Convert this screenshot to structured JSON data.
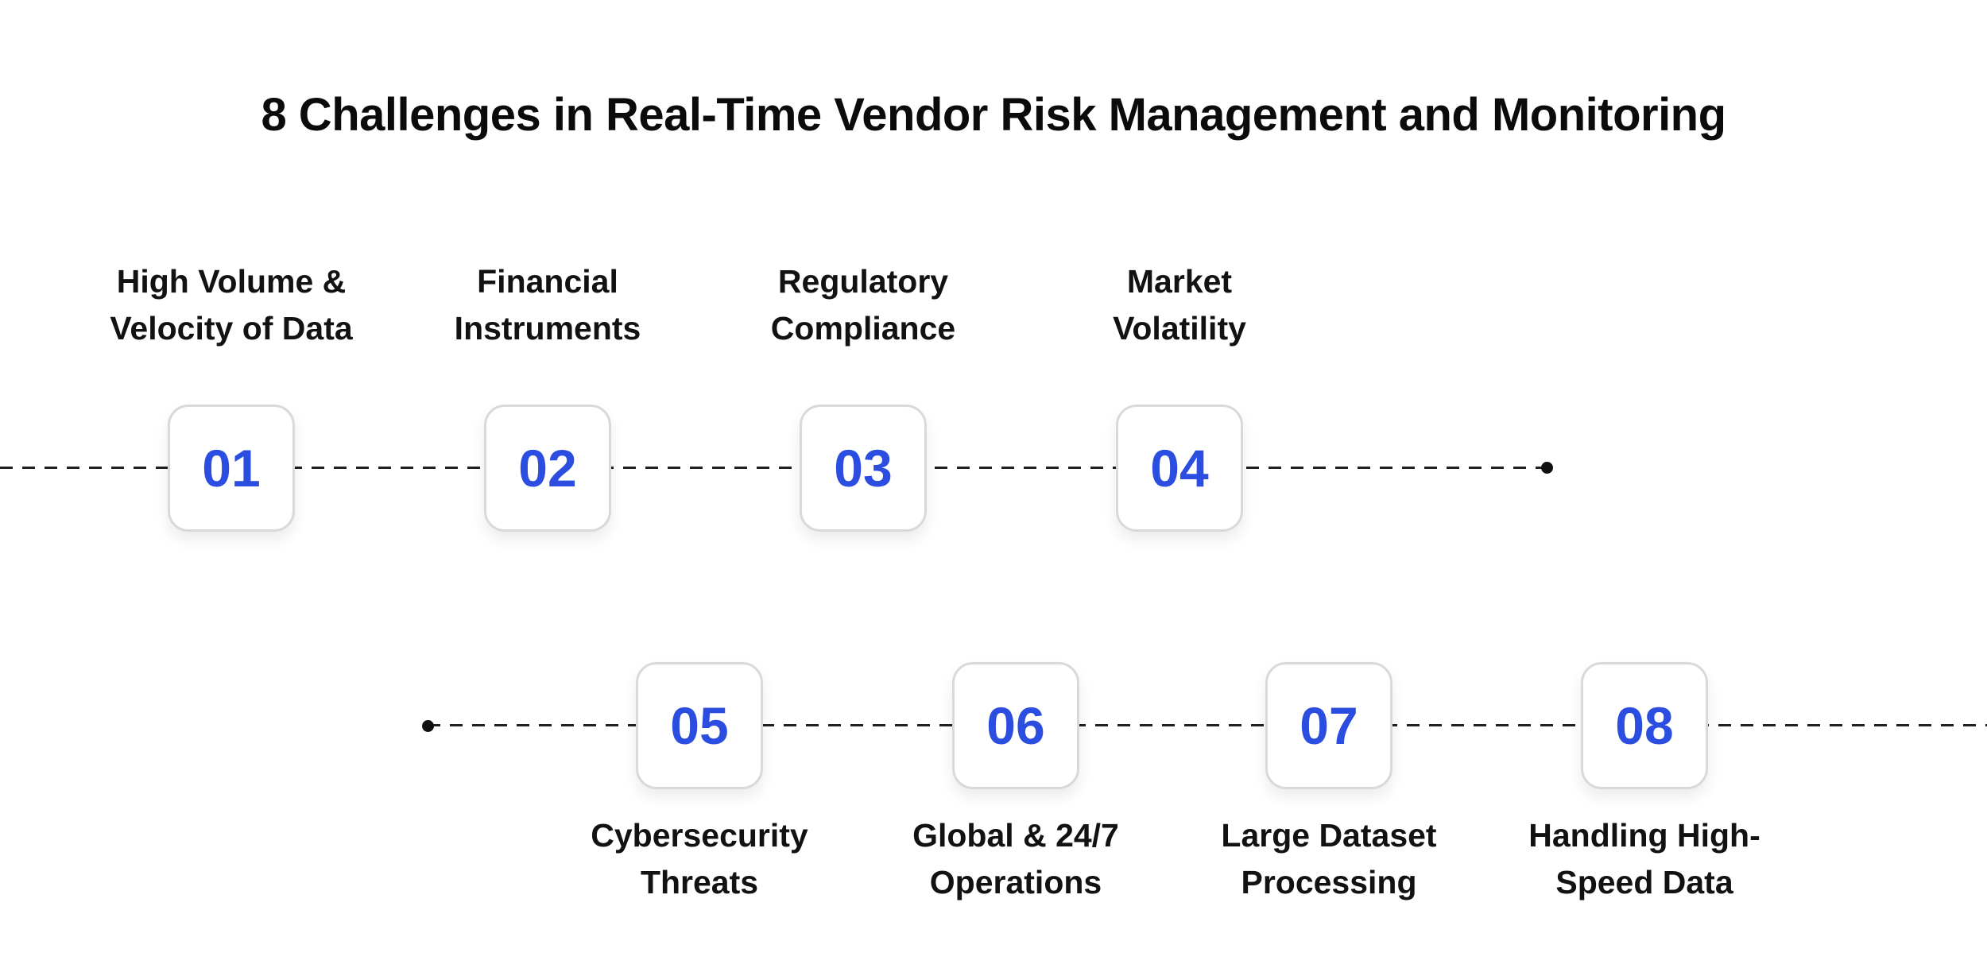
{
  "title": "8 Challenges in Real-Time Vendor Risk Management and Monitoring",
  "colors": {
    "accent": "#2B4EE0",
    "line": "#1f1f1f",
    "box_border": "#d9d9d9"
  },
  "items": [
    {
      "number": "01",
      "label_line1": "High Volume &",
      "label_line2": "Velocity of Data"
    },
    {
      "number": "02",
      "label_line1": "Financial",
      "label_line2": "Instruments"
    },
    {
      "number": "03",
      "label_line1": "Regulatory",
      "label_line2": "Compliance"
    },
    {
      "number": "04",
      "label_line1": "Market",
      "label_line2": "Volatility"
    },
    {
      "number": "05",
      "label_line1": "Cybersecurity",
      "label_line2": "Threats"
    },
    {
      "number": "06",
      "label_line1": "Global & 24/7",
      "label_line2": "Operations"
    },
    {
      "number": "07",
      "label_line1": "Large Dataset",
      "label_line2": "Processing"
    },
    {
      "number": "08",
      "label_line1": "Handling High-",
      "label_line2": "Speed Data"
    }
  ]
}
